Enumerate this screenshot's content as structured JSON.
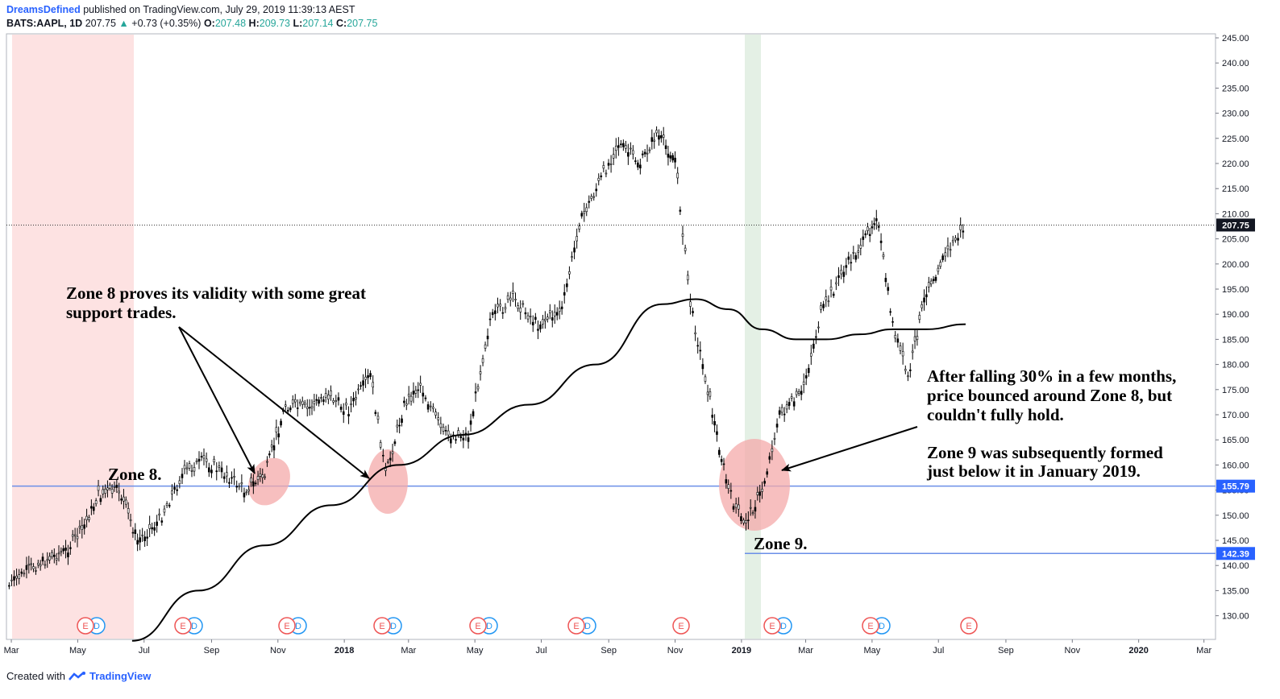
{
  "header": {
    "author": "DreamsDefined",
    "published": "published on TradingView.com, July 29, 2019 11:39:13 AEST",
    "symbol": "BATS:AAPL, 1D",
    "last": "207.75",
    "change": "+0.73 (+0.35%)",
    "o_label": "O:",
    "o": "207.48",
    "h_label": "H:",
    "h": "209.73",
    "l_label": "L:",
    "l": "207.14",
    "c_label": "C:",
    "c": "207.75"
  },
  "footer": {
    "created_with": "Created with",
    "brand": "TradingView"
  },
  "colors": {
    "candle": "#000000",
    "hline": "#6b8fe8",
    "red_zone": "#f8c9c9",
    "green_zone": "#cfe6d1",
    "earnings": "#e55",
    "dividend": "#2196f3"
  },
  "chart_data": {
    "type": "line",
    "y_ticks": [
      "245.00",
      "240.00",
      "235.00",
      "230.00",
      "225.00",
      "220.00",
      "215.00",
      "210.00",
      "205.00",
      "200.00",
      "195.00",
      "190.00",
      "185.00",
      "180.00",
      "175.00",
      "170.00",
      "165.00",
      "160.00",
      "155.00",
      "150.00",
      "145.00",
      "140.00",
      "135.00",
      "130.00"
    ],
    "x_ticks": [
      "Mar",
      "May",
      "Jul",
      "Sep",
      "Nov",
      "2018",
      "Mar",
      "May",
      "Jul",
      "Sep",
      "Nov",
      "2019",
      "Mar",
      "May",
      "Jul",
      "Sep",
      "Nov",
      "2020",
      "Mar"
    ],
    "ylim": [
      125,
      246
    ],
    "series": [
      {
        "x": [
          "2017-02-27",
          "2017-03-15",
          "2017-04-01",
          "2017-04-20",
          "2017-05-05",
          "2017-05-20",
          "2017-06-08",
          "2017-06-25",
          "2017-07-15",
          "2017-08-05",
          "2017-08-25",
          "2017-09-15",
          "2017-10-01",
          "2017-10-20",
          "2017-11-08",
          "2017-11-28",
          "2017-12-15",
          "2018-01-05",
          "2018-01-25",
          "2018-02-08",
          "2018-02-25",
          "2018-03-12",
          "2018-04-02",
          "2018-04-25",
          "2018-05-15",
          "2018-06-05",
          "2018-06-28",
          "2018-07-20",
          "2018-08-05",
          "2018-08-25",
          "2018-09-10",
          "2018-09-30",
          "2018-10-15",
          "2018-11-01",
          "2018-11-15",
          "2018-12-01",
          "2018-12-20",
          "2019-01-03",
          "2019-01-20",
          "2019-02-05",
          "2019-02-25",
          "2019-03-15",
          "2019-04-05",
          "2019-04-25",
          "2019-05-05",
          "2019-05-20",
          "2019-06-03",
          "2019-06-20",
          "2019-07-05",
          "2019-07-26"
        ],
        "values": [
          136,
          139,
          141,
          143,
          147,
          154,
          155,
          145,
          149,
          158,
          161,
          158,
          155,
          158,
          172,
          171,
          174,
          171,
          178,
          158,
          172,
          176,
          166,
          166,
          189,
          193,
          188,
          191,
          208,
          217,
          224,
          220,
          226,
          221,
          192,
          175,
          155,
          148,
          155,
          170,
          174,
          190,
          199,
          205,
          210,
          188,
          177,
          195,
          201,
          207.75
        ]
      },
      {
        "x": [
          "2017-06-20",
          "2017-08-20",
          "2017-10-20",
          "2017-12-20",
          "2018-02-20",
          "2018-04-20",
          "2018-06-20",
          "2018-08-20",
          "2018-10-20",
          "2018-11-20",
          "2018-12-20",
          "2019-01-20",
          "2019-02-20",
          "2019-03-20",
          "2019-04-20",
          "2019-05-20",
          "2019-06-20",
          "2019-07-26"
        ],
        "values": [
          125,
          135,
          144,
          152,
          160,
          166,
          172,
          180,
          192,
          193,
          191,
          187,
          185,
          185,
          186,
          187,
          187,
          188
        ]
      }
    ],
    "hlines": [
      155.79,
      142.39
    ],
    "price_labels": [
      "207.75",
      "155.79",
      "142.39"
    ],
    "annotations": {
      "zone8_note_l1": "Zone 8 proves its validity with some great",
      "zone8_note_l2": "support trades.",
      "zone8": "Zone 8.",
      "zone9": "Zone 9.",
      "fall_l1": "After falling 30% in a few months,",
      "fall_l2": "price bounced around Zone 8, but",
      "fall_l3": "couldn't fully hold.",
      "zone9_l1": "Zone 9 was subsequently formed",
      "zone9_l2": "just below it in January 2019."
    },
    "event_markers": {
      "earnings": "E",
      "dividend": "D"
    }
  }
}
